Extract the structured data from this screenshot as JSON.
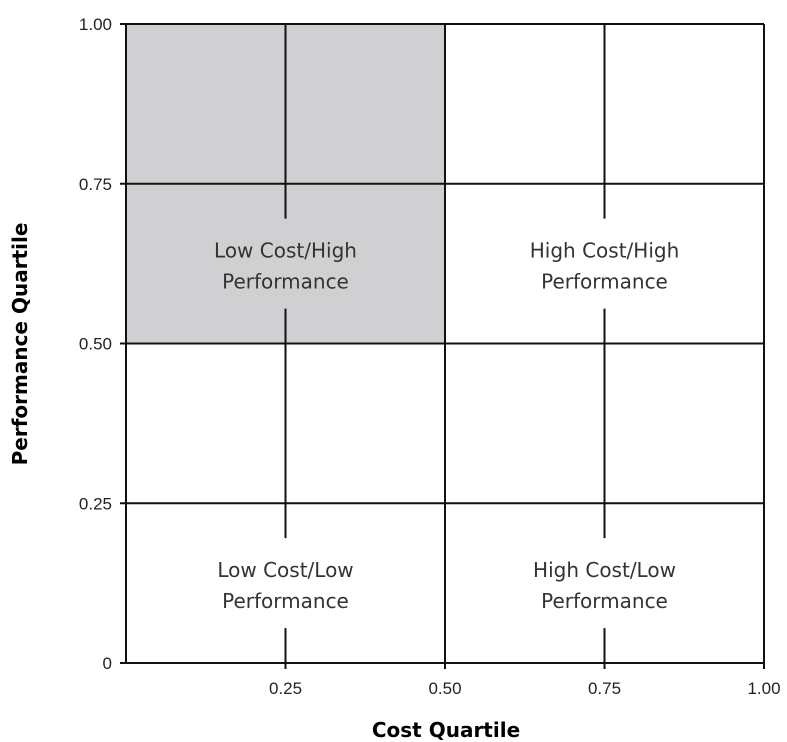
{
  "chart_data": {
    "type": "quadrant",
    "xlabel": "Cost Quartile",
    "ylabel": "Performance Quartile",
    "xlim": [
      0,
      1
    ],
    "ylim": [
      0,
      1
    ],
    "x_ticks": [
      "0.25",
      "0.50",
      "0.75",
      "1.00"
    ],
    "y_ticks": [
      "0",
      "0.25",
      "0.50",
      "0.75",
      "1.00"
    ],
    "gridlines": [
      0.25,
      0.5,
      0.75
    ],
    "highlight": {
      "x": [
        0,
        0.5
      ],
      "y": [
        0.5,
        1
      ],
      "color": "#d0d0d2"
    },
    "quadrants": [
      {
        "id": "low-cost-high-performance",
        "x": 0.25,
        "y": 0.625,
        "lines": [
          "Low Cost/High",
          "Performance"
        ]
      },
      {
        "id": "high-cost-high-performance",
        "x": 0.75,
        "y": 0.625,
        "lines": [
          "High Cost/High",
          "Performance"
        ]
      },
      {
        "id": "low-cost-low-performance",
        "x": 0.25,
        "y": 0.125,
        "lines": [
          "Low Cost/Low",
          "Performance"
        ]
      },
      {
        "id": "high-cost-low-performance",
        "x": 0.75,
        "y": 0.125,
        "lines": [
          "High Cost/Low",
          "Performance"
        ]
      }
    ]
  }
}
